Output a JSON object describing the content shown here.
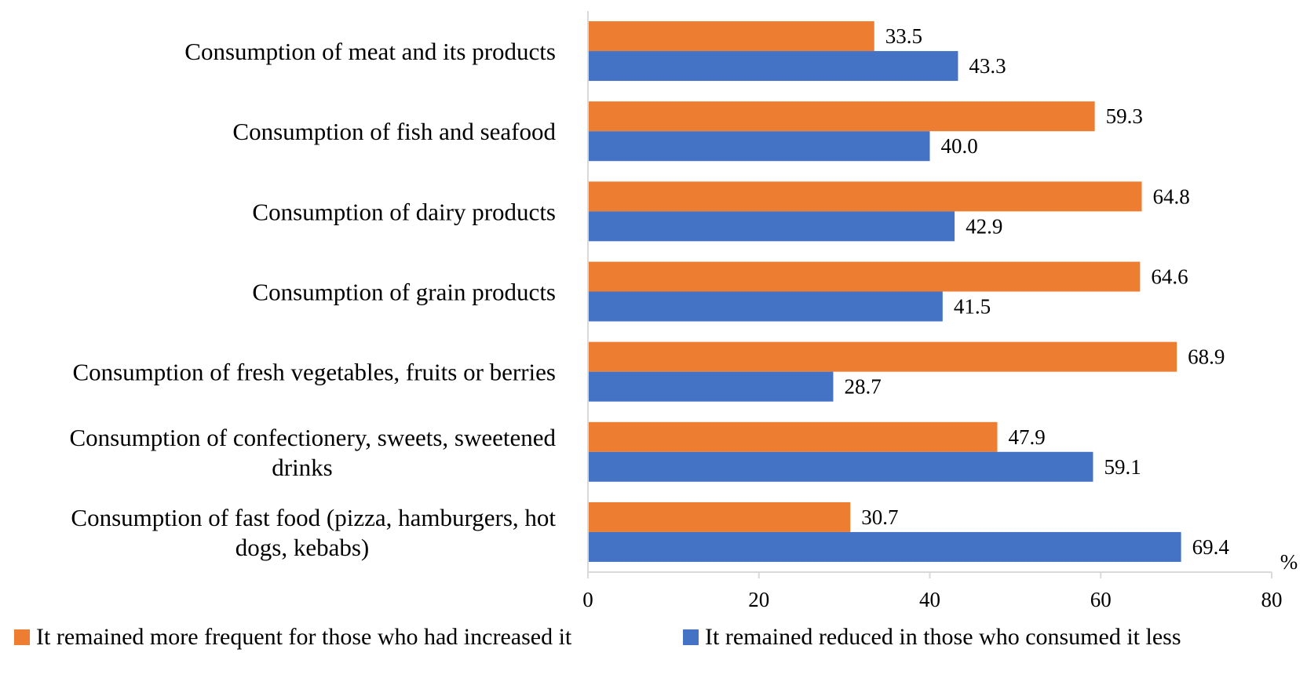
{
  "chart_data": {
    "type": "bar",
    "orientation": "horizontal",
    "title": "",
    "categories": [
      [
        "Consumption of meat and its products"
      ],
      [
        "Consumption of fish and seafood"
      ],
      [
        "Consumption of dairy products"
      ],
      [
        "Consumption of grain products"
      ],
      [
        "Consumption of fresh vegetables, fruits or berries"
      ],
      [
        "Consumption of confectionery, sweets, sweetened",
        "drinks"
      ],
      [
        "Consumption of fast food (pizza, hamburgers, hot",
        "dogs, kebabs)"
      ]
    ],
    "series": [
      {
        "name": "It remained more frequent for those who had increased it",
        "color": "#ED7D31",
        "values": [
          33.5,
          59.3,
          64.8,
          64.6,
          68.9,
          47.9,
          30.7
        ],
        "labels": [
          "33.5",
          "59.3",
          "64.8",
          "64.6",
          "68.9",
          "47.9",
          "30.7"
        ]
      },
      {
        "name": "It remained reduced in those who consumed it less",
        "color": "#4472C4",
        "values": [
          43.3,
          40.0,
          42.9,
          41.5,
          28.7,
          59.1,
          69.4
        ],
        "labels": [
          "43.3",
          "40.0",
          "42.9",
          "41.5",
          "28.7",
          "59.1",
          "69.4"
        ]
      }
    ],
    "xlim": [
      0,
      80
    ],
    "xticks": [
      "0",
      "20",
      "40",
      "60",
      "80"
    ],
    "xlabel": "%",
    "ylabel": "",
    "grid": false,
    "legend_position": "bottom"
  }
}
